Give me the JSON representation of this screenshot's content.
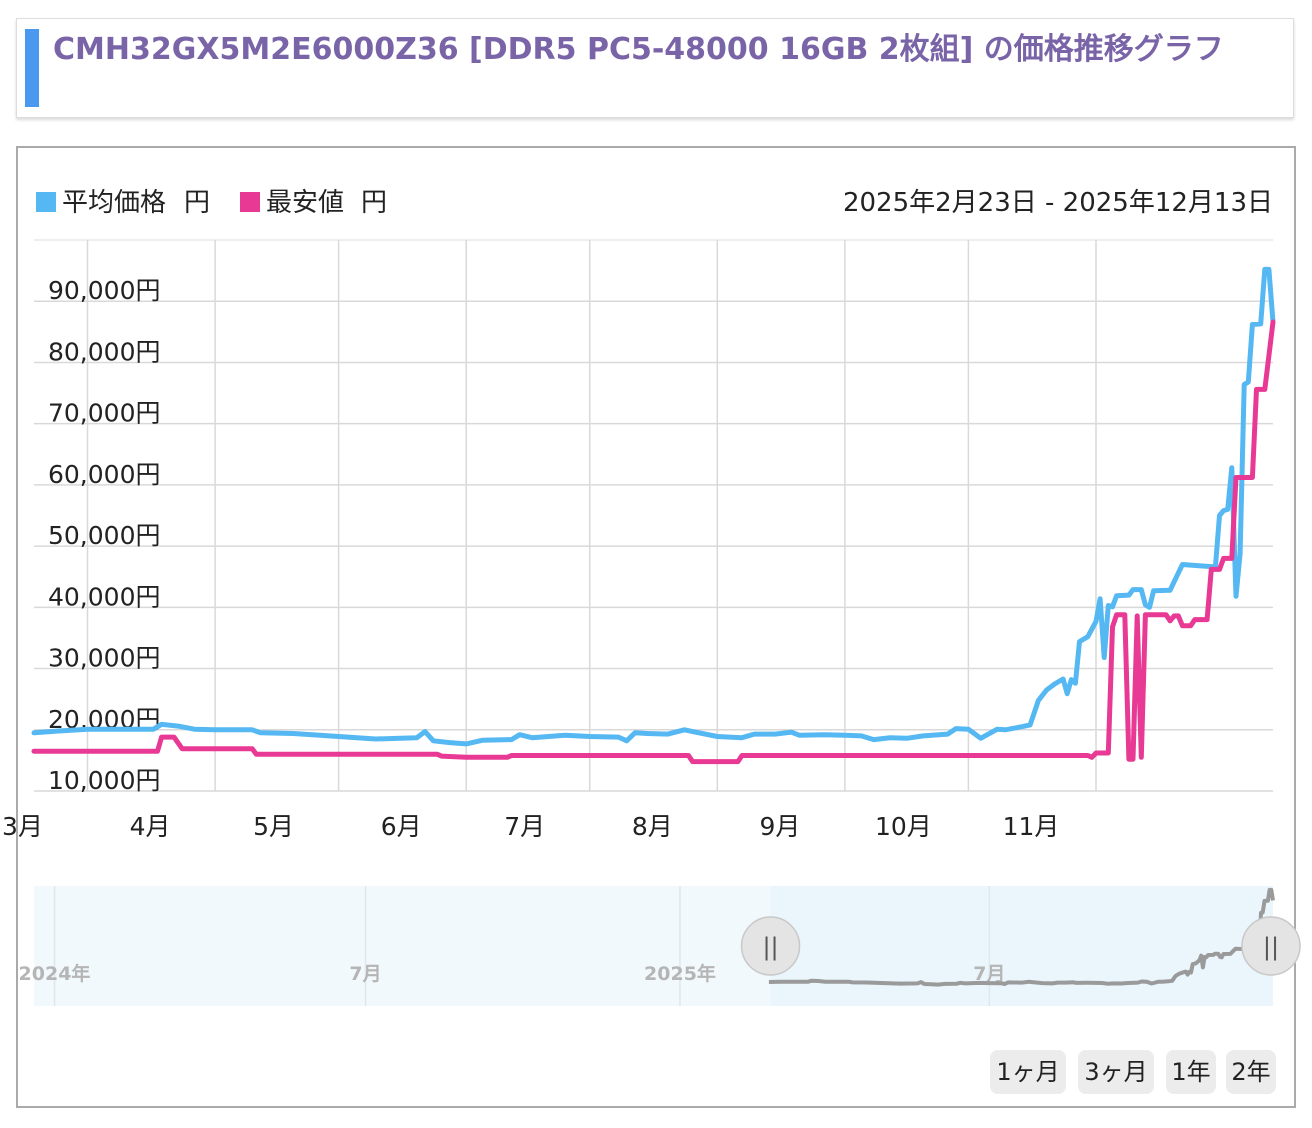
{
  "header": {
    "title": "CMH32GX5M2E6000Z36 [DDR5 PC5-48000 16GB 2枚組] の価格推移グラフ"
  },
  "colors": {
    "avg": "#55b8f2",
    "min": "#e83a94",
    "title": "#7a64a8",
    "accent": "#4a98f0",
    "navigator_bg": "#eaf6fc",
    "navigator_line": "#9a9a9a"
  },
  "chart_data": {
    "type": "line",
    "date_range": "2025年2月23日 - 2025年12月13日",
    "ylim": [
      10000,
      100000
    ],
    "y_ticks": [
      {
        "value": 10000,
        "label": "10,000円"
      },
      {
        "value": 20000,
        "label": "20,000円"
      },
      {
        "value": 30000,
        "label": "30,000円"
      },
      {
        "value": 40000,
        "label": "40,000円"
      },
      {
        "value": 50000,
        "label": "50,000円"
      },
      {
        "value": 60000,
        "label": "60,000円"
      },
      {
        "value": 70000,
        "label": "70,000円"
      },
      {
        "value": 80000,
        "label": "80,000円"
      },
      {
        "value": 90000,
        "label": "90,000円"
      }
    ],
    "x_ticks": [
      {
        "date": "2025-03-01",
        "label": "3月"
      },
      {
        "date": "2025-04-01",
        "label": "4月"
      },
      {
        "date": "2025-05-01",
        "label": "5月"
      },
      {
        "date": "2025-06-01",
        "label": "6月"
      },
      {
        "date": "2025-07-01",
        "label": "7月"
      },
      {
        "date": "2025-08-01",
        "label": "8月"
      },
      {
        "date": "2025-09-01",
        "label": "9月"
      },
      {
        "date": "2025-10-01",
        "label": "10月"
      },
      {
        "date": "2025-11-01",
        "label": "11月"
      }
    ],
    "series": [
      {
        "name": "平均価格",
        "unit": "円",
        "color": "#55b8f2",
        "points": [
          [
            "2025-02-16",
            19500
          ],
          [
            "2025-02-22",
            19800
          ],
          [
            "2025-03-01",
            20100
          ],
          [
            "2025-03-17",
            20100
          ],
          [
            "2025-03-19",
            20900
          ],
          [
            "2025-03-23",
            20600
          ],
          [
            "2025-03-27",
            20100
          ],
          [
            "2025-04-01",
            20000
          ],
          [
            "2025-04-10",
            20000
          ],
          [
            "2025-04-12",
            19500
          ],
          [
            "2025-04-20",
            19400
          ],
          [
            "2025-05-01",
            18900
          ],
          [
            "2025-05-10",
            18500
          ],
          [
            "2025-05-20",
            18700
          ],
          [
            "2025-05-22",
            19700
          ],
          [
            "2025-05-24",
            18200
          ],
          [
            "2025-05-28",
            17900
          ],
          [
            "2025-06-01",
            17700
          ],
          [
            "2025-06-05",
            18300
          ],
          [
            "2025-06-12",
            18400
          ],
          [
            "2025-06-14",
            19200
          ],
          [
            "2025-06-17",
            18700
          ],
          [
            "2025-06-25",
            19100
          ],
          [
            "2025-07-01",
            18900
          ],
          [
            "2025-07-08",
            18800
          ],
          [
            "2025-07-10",
            18200
          ],
          [
            "2025-07-12",
            19500
          ],
          [
            "2025-07-15",
            19400
          ],
          [
            "2025-07-20",
            19300
          ],
          [
            "2025-07-24",
            20000
          ],
          [
            "2025-07-26",
            19700
          ],
          [
            "2025-08-01",
            18900
          ],
          [
            "2025-08-07",
            18700
          ],
          [
            "2025-08-10",
            19300
          ],
          [
            "2025-08-15",
            19300
          ],
          [
            "2025-08-19",
            19600
          ],
          [
            "2025-08-21",
            19100
          ],
          [
            "2025-08-27",
            19200
          ],
          [
            "2025-09-01",
            19100
          ],
          [
            "2025-09-05",
            19000
          ],
          [
            "2025-09-08",
            18400
          ],
          [
            "2025-09-12",
            18700
          ],
          [
            "2025-09-16",
            18600
          ],
          [
            "2025-09-20",
            19000
          ],
          [
            "2025-09-26",
            19300
          ],
          [
            "2025-09-28",
            20200
          ],
          [
            "2025-10-01",
            20100
          ],
          [
            "2025-10-04",
            18600
          ],
          [
            "2025-10-08",
            20100
          ],
          [
            "2025-10-10",
            20000
          ],
          [
            "2025-10-14",
            20500
          ],
          [
            "2025-10-16",
            20800
          ],
          [
            "2025-10-18",
            24800
          ],
          [
            "2025-10-20",
            26500
          ],
          [
            "2025-10-22",
            27500
          ],
          [
            "2025-10-24",
            28300
          ],
          [
            "2025-10-25",
            25900
          ],
          [
            "2025-10-26",
            28200
          ],
          [
            "2025-10-27",
            27600
          ],
          [
            "2025-10-28",
            34400
          ],
          [
            "2025-10-30",
            35200
          ],
          [
            "2025-11-01",
            37700
          ],
          [
            "2025-11-02",
            41400
          ],
          [
            "2025-11-03",
            31800
          ],
          [
            "2025-11-04",
            40300
          ],
          [
            "2025-11-05",
            40100
          ],
          [
            "2025-11-06",
            41900
          ],
          [
            "2025-11-09",
            42000
          ],
          [
            "2025-11-10",
            42900
          ],
          [
            "2025-11-12",
            42900
          ],
          [
            "2025-11-13",
            40400
          ],
          [
            "2025-11-14",
            40000
          ],
          [
            "2025-11-15",
            42700
          ],
          [
            "2025-11-19",
            42800
          ],
          [
            "2025-11-22",
            47000
          ],
          [
            "2025-11-26",
            46800
          ],
          [
            "2025-11-30",
            46600
          ],
          [
            "2025-12-01",
            55000
          ],
          [
            "2025-12-02",
            55800
          ],
          [
            "2025-12-03",
            56000
          ],
          [
            "2025-12-04",
            62800
          ],
          [
            "2025-12-05",
            41800
          ],
          [
            "2025-12-06",
            48800
          ],
          [
            "2025-12-07",
            76400
          ],
          [
            "2025-12-08",
            76800
          ],
          [
            "2025-12-09",
            86200
          ],
          [
            "2025-12-11",
            86300
          ],
          [
            "2025-12-12",
            95200
          ],
          [
            "2025-12-13",
            95200
          ],
          [
            "2025-12-14",
            86600
          ]
        ]
      },
      {
        "name": "最安値",
        "unit": "円",
        "color": "#e83a94",
        "points": [
          [
            "2025-02-16",
            16500
          ],
          [
            "2025-03-18",
            16500
          ],
          [
            "2025-03-19",
            18800
          ],
          [
            "2025-03-22",
            18800
          ],
          [
            "2025-03-24",
            16900
          ],
          [
            "2025-04-10",
            16900
          ],
          [
            "2025-04-11",
            16000
          ],
          [
            "2025-05-25",
            16000
          ],
          [
            "2025-05-26",
            15700
          ],
          [
            "2025-06-01",
            15500
          ],
          [
            "2025-06-11",
            15500
          ],
          [
            "2025-06-12",
            15800
          ],
          [
            "2025-07-25",
            15800
          ],
          [
            "2025-07-26",
            14800
          ],
          [
            "2025-08-06",
            14800
          ],
          [
            "2025-08-07",
            15800
          ],
          [
            "2025-10-30",
            15800
          ],
          [
            "2025-10-31",
            15500
          ],
          [
            "2025-11-01",
            16200
          ],
          [
            "2025-11-04",
            16200
          ],
          [
            "2025-11-05",
            36800
          ],
          [
            "2025-11-06",
            38800
          ],
          [
            "2025-11-08",
            38800
          ],
          [
            "2025-11-09",
            15200
          ],
          [
            "2025-11-10",
            15200
          ],
          [
            "2025-11-11",
            38600
          ],
          [
            "2025-11-12",
            15500
          ],
          [
            "2025-11-13",
            38800
          ],
          [
            "2025-11-18",
            38800
          ],
          [
            "2025-11-19",
            37800
          ],
          [
            "2025-11-20",
            38600
          ],
          [
            "2025-11-21",
            38600
          ],
          [
            "2025-11-22",
            37000
          ],
          [
            "2025-11-24",
            37000
          ],
          [
            "2025-11-25",
            38000
          ],
          [
            "2025-11-28",
            38000
          ],
          [
            "2025-11-29",
            46200
          ],
          [
            "2025-12-01",
            46200
          ],
          [
            "2025-12-02",
            48000
          ],
          [
            "2025-12-04",
            48000
          ],
          [
            "2025-12-05",
            61200
          ],
          [
            "2025-12-09",
            61200
          ],
          [
            "2025-12-10",
            75600
          ],
          [
            "2025-12-12",
            75600
          ],
          [
            "2025-12-14",
            86600
          ]
        ]
      }
    ],
    "navigator": {
      "labels": [
        {
          "date": "2024-01-01",
          "label": "2024年"
        },
        {
          "date": "2024-07-01",
          "label": "7月"
        },
        {
          "date": "2025-01-01",
          "label": "2025年"
        },
        {
          "date": "2025-07-01",
          "label": "7月"
        }
      ],
      "selected_start": "2025-02-23",
      "selected_end": "2025-12-13",
      "handle_glyph": "||"
    },
    "grid": true,
    "legend_position": "top-left"
  },
  "range_buttons": [
    {
      "label": "1ヶ月"
    },
    {
      "label": "3ヶ月"
    },
    {
      "label": "1年"
    },
    {
      "label": "2年"
    }
  ]
}
